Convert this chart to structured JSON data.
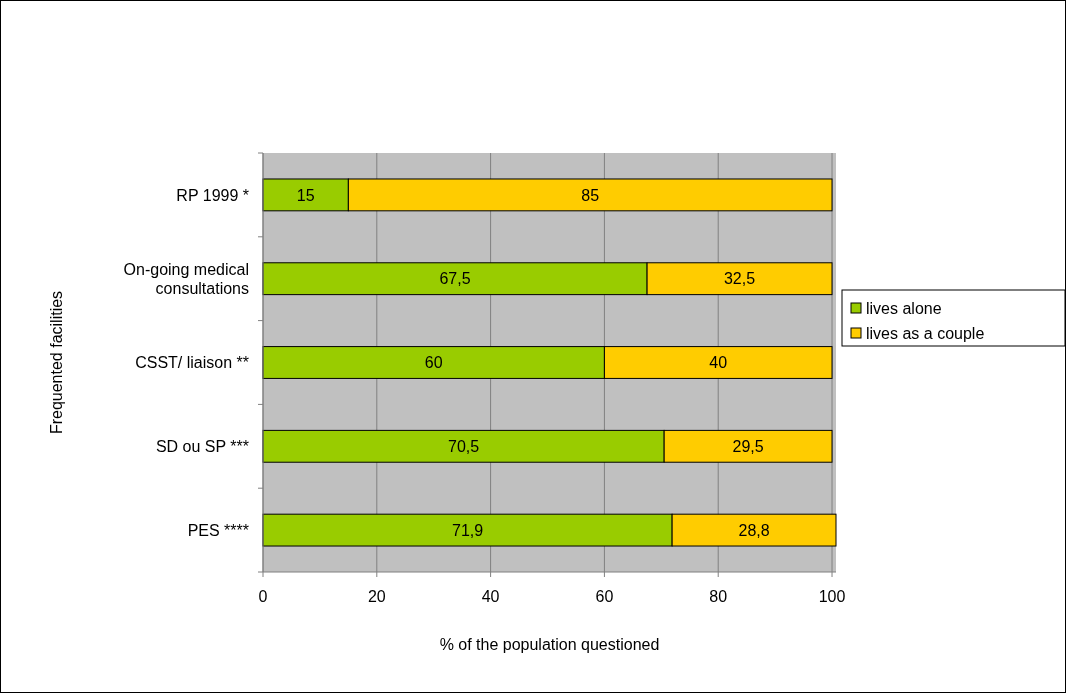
{
  "chart_data": {
    "type": "bar",
    "orientation": "horizontal",
    "stacked": true,
    "xlabel": "% of the population questioned",
    "ylabel": "Frequented facilities",
    "categories": [
      "RP 1999 *",
      "On-going medical consultations",
      "CSST/ liaison **",
      "SD ou SP ***",
      "PES ****"
    ],
    "series": [
      {
        "name": "lives alone",
        "color": "#99cc00",
        "values": [
          15,
          67.5,
          60,
          70.5,
          71.9
        ],
        "value_labels": [
          "15",
          "67,5",
          "60",
          "70,5",
          "71,9"
        ]
      },
      {
        "name": "lives as a couple",
        "color": "#ffcc00",
        "values": [
          85,
          32.5,
          40,
          29.5,
          28.8
        ],
        "value_labels": [
          "85",
          "32,5",
          "40",
          "29,5",
          "28,8"
        ]
      }
    ],
    "xlim": [
      0,
      100.7
    ],
    "xticks": [
      0,
      20,
      40,
      60,
      80,
      100
    ],
    "grid": "x",
    "legend": "right"
  }
}
